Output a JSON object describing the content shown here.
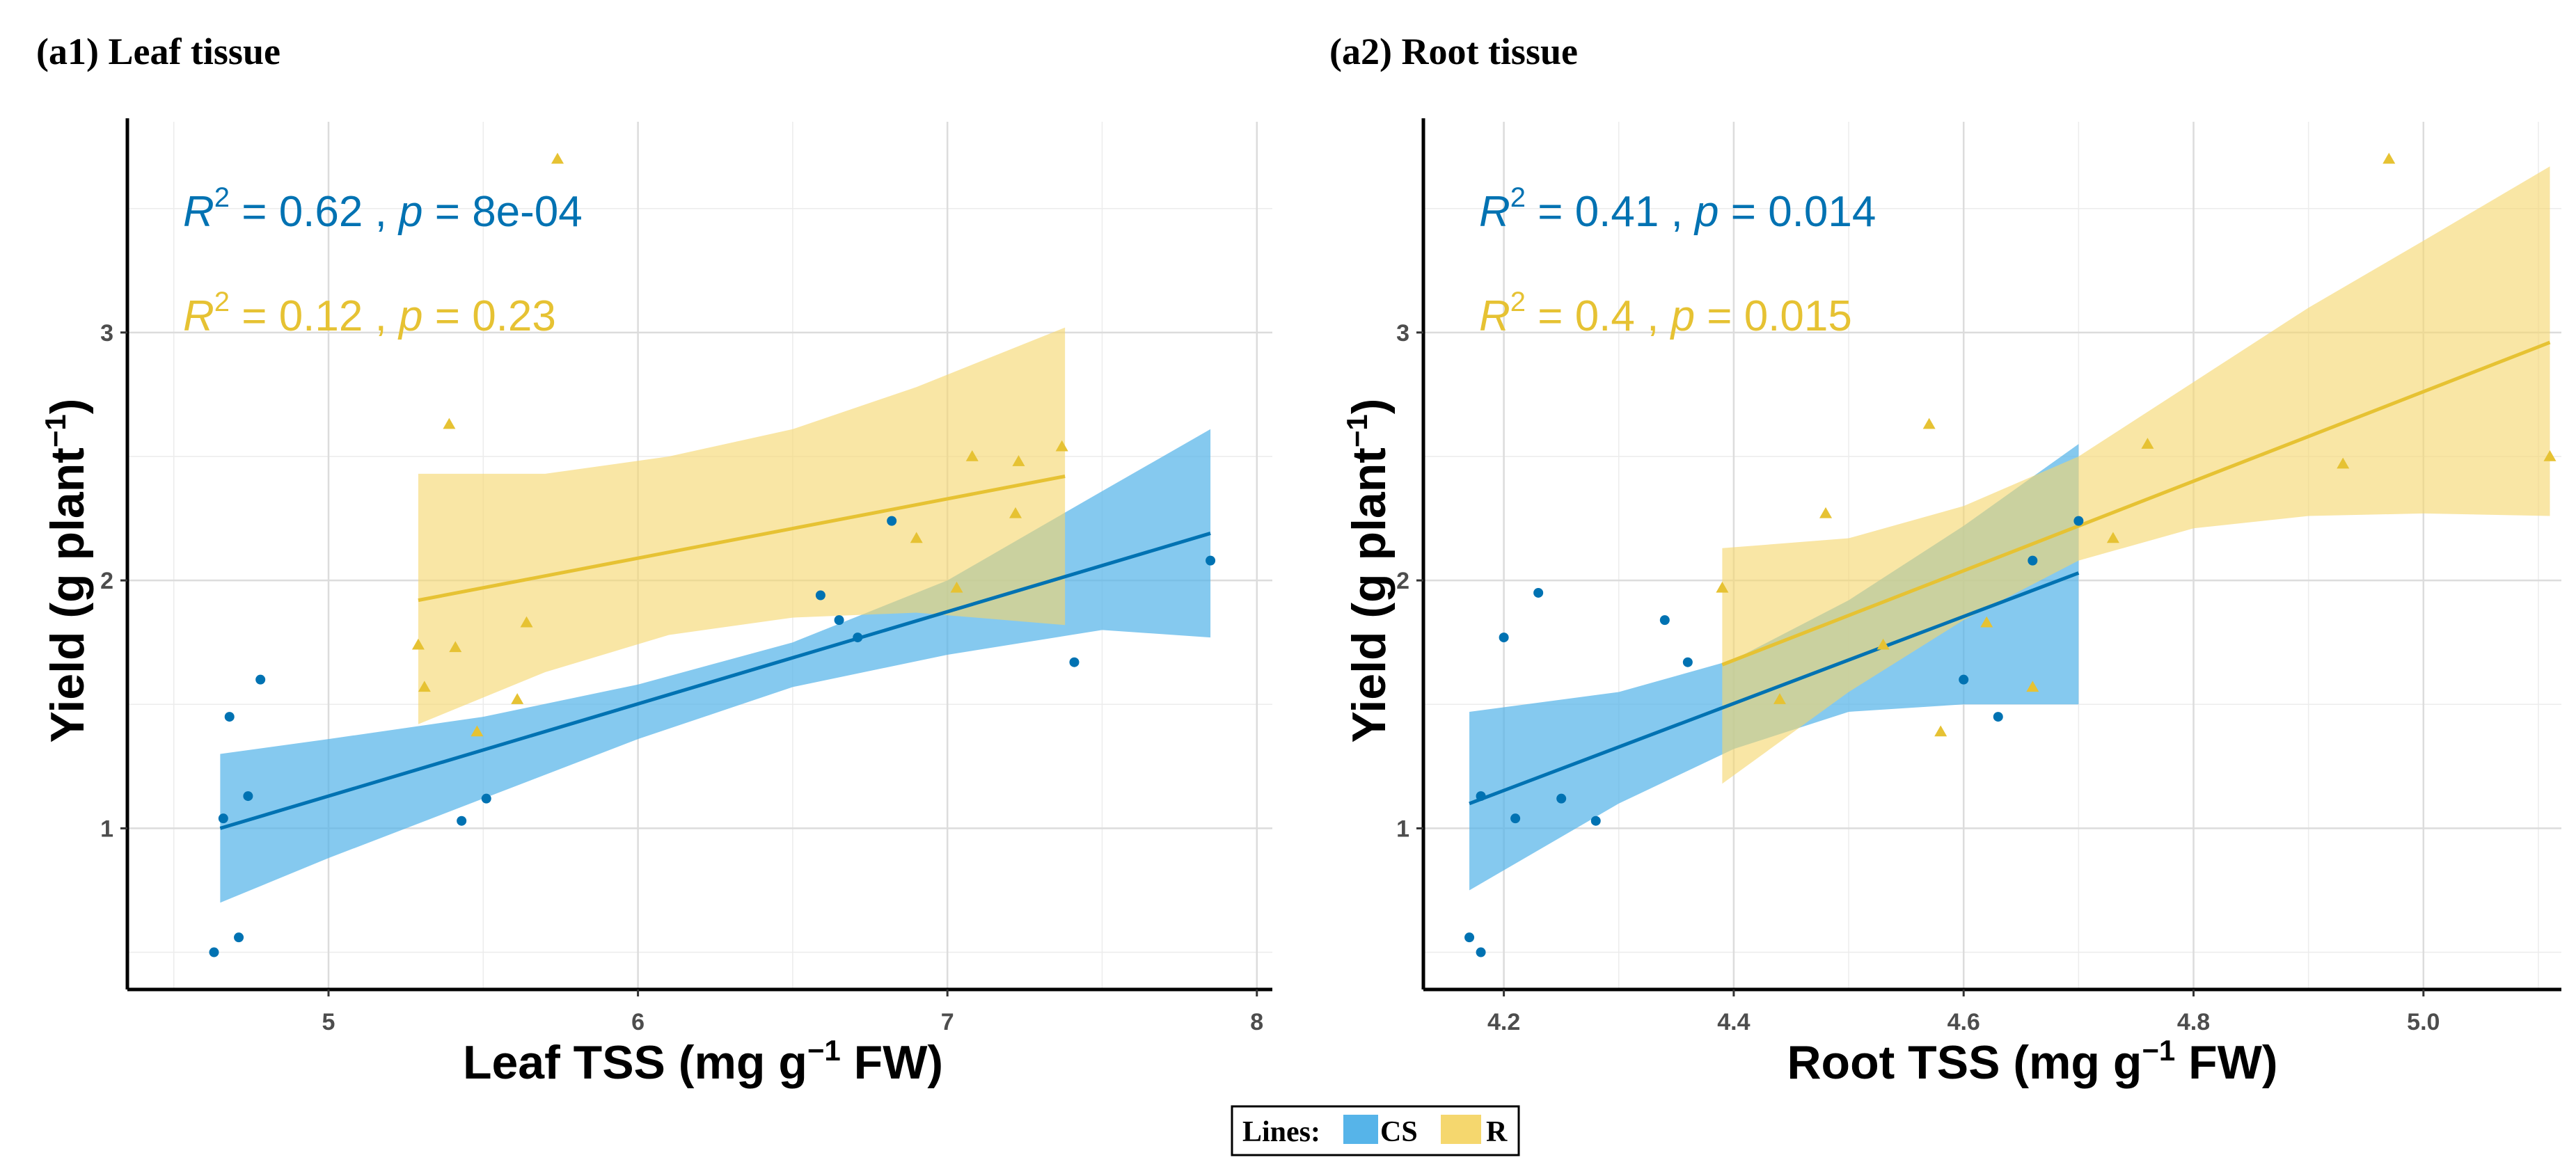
{
  "colors": {
    "cs_line": "#0072B2",
    "cs_band": "#56B4E9",
    "r_line": "#E6C233",
    "r_band": "#F5D76E"
  },
  "legend": {
    "label": "Lines:",
    "cs": "CS",
    "r": "R"
  },
  "chart_data": [
    {
      "type": "scatter",
      "panel": "(a1) Leaf tissue",
      "xlabel": "Leaf TSS (mg g",
      "xlabel_sup": "−1",
      "xlabel_tail": " FW)",
      "ylabel": "Yield (g plant",
      "ylabel_sup": "−1",
      "ylabel_tail": ")",
      "xlim": [
        4.35,
        8.05
      ],
      "ylim": [
        0.35,
        3.85
      ],
      "xticks": [
        5,
        6,
        7,
        8
      ],
      "yticks": [
        1,
        2,
        3
      ],
      "xminor": [
        4.5,
        5.5,
        6.5,
        7.5
      ],
      "yminor": [
        0.5,
        1.5,
        2.5,
        3.5
      ],
      "annotations": [
        {
          "series": "CS",
          "r2_label": "R",
          "r2_value": " = 0.62 , ",
          "p_label": "p",
          "p_value": " = 8e-04"
        },
        {
          "series": "R",
          "r2_label": "R",
          "r2_value": " = 0.12 , ",
          "p_label": "p",
          "p_value": " = 0.23"
        }
      ],
      "series": [
        {
          "name": "CS",
          "marker": "circle",
          "points": [
            [
              4.63,
              0.5
            ],
            [
              4.66,
              1.04
            ],
            [
              4.68,
              1.45
            ],
            [
              4.71,
              0.56
            ],
            [
              4.74,
              1.13
            ],
            [
              4.78,
              1.6
            ],
            [
              5.43,
              1.03
            ],
            [
              5.51,
              1.12
            ],
            [
              6.59,
              1.94
            ],
            [
              6.65,
              1.84
            ],
            [
              6.71,
              1.77
            ],
            [
              6.82,
              2.24
            ],
            [
              7.41,
              1.67
            ],
            [
              7.85,
              2.08
            ]
          ],
          "fit": {
            "x": [
              4.65,
              7.85
            ],
            "y": [
              1.0,
              2.19
            ]
          },
          "band": {
            "x": [
              4.65,
              5.0,
              5.5,
              6.0,
              6.5,
              7.0,
              7.5,
              7.85
            ],
            "lower": [
              0.7,
              0.88,
              1.12,
              1.36,
              1.57,
              1.7,
              1.8,
              1.77
            ],
            "upper": [
              1.3,
              1.36,
              1.45,
              1.58,
              1.75,
              2.0,
              2.36,
              2.61
            ]
          }
        },
        {
          "name": "R",
          "marker": "triangle",
          "points": [
            [
              5.29,
              1.74
            ],
            [
              5.31,
              1.57
            ],
            [
              5.39,
              2.63
            ],
            [
              5.41,
              1.73
            ],
            [
              5.48,
              1.39
            ],
            [
              5.61,
              1.52
            ],
            [
              5.64,
              1.83
            ],
            [
              5.74,
              3.7
            ],
            [
              6.9,
              2.17
            ],
            [
              7.03,
              1.97
            ],
            [
              7.08,
              2.5
            ],
            [
              7.22,
              2.27
            ],
            [
              7.23,
              2.48
            ],
            [
              7.37,
              2.54
            ]
          ],
          "fit": {
            "x": [
              5.29,
              7.38
            ],
            "y": [
              1.92,
              2.42
            ]
          },
          "band": {
            "x": [
              5.29,
              5.7,
              6.1,
              6.5,
              6.9,
              7.38
            ],
            "lower": [
              1.42,
              1.63,
              1.78,
              1.85,
              1.87,
              1.82
            ],
            "upper": [
              2.43,
              2.43,
              2.5,
              2.61,
              2.78,
              3.02
            ]
          }
        }
      ]
    },
    {
      "type": "scatter",
      "panel": "(a2) Root tissue",
      "xlabel": "Root TSS (mg g",
      "xlabel_sup": "−1",
      "xlabel_tail": " FW)",
      "ylabel": "Yield (g plant",
      "ylabel_sup": "−1",
      "ylabel_tail": ")",
      "xlim": [
        4.13,
        5.12
      ],
      "ylim": [
        0.35,
        3.85
      ],
      "xticks": [
        4.2,
        4.4,
        4.6,
        4.8,
        5.0
      ],
      "xtick_labels": [
        "4.2",
        "4.4",
        "4.6",
        "4.8",
        "5.0"
      ],
      "yticks": [
        1,
        2,
        3
      ],
      "xminor": [
        4.3,
        4.5,
        4.7,
        4.9,
        5.1
      ],
      "yminor": [
        0.5,
        1.5,
        2.5,
        3.5
      ],
      "annotations": [
        {
          "series": "CS",
          "r2_label": "R",
          "r2_value": " = 0.41 , ",
          "p_label": "p",
          "p_value": " = 0.014"
        },
        {
          "series": "R",
          "r2_label": "R",
          "r2_value": " = 0.4 , ",
          "p_label": "p",
          "p_value": " = 0.015"
        }
      ],
      "series": [
        {
          "name": "CS",
          "marker": "circle",
          "points": [
            [
              4.17,
              0.56
            ],
            [
              4.18,
              0.5
            ],
            [
              4.18,
              1.13
            ],
            [
              4.2,
              1.77
            ],
            [
              4.21,
              1.04
            ],
            [
              4.23,
              1.95
            ],
            [
              4.25,
              1.12
            ],
            [
              4.28,
              1.03
            ],
            [
              4.34,
              1.84
            ],
            [
              4.36,
              1.67
            ],
            [
              4.6,
              1.6
            ],
            [
              4.63,
              1.45
            ],
            [
              4.66,
              2.08
            ],
            [
              4.7,
              2.24
            ]
          ],
          "fit": {
            "x": [
              4.17,
              4.7
            ],
            "y": [
              1.1,
              2.03
            ]
          },
          "band": {
            "x": [
              4.17,
              4.3,
              4.4,
              4.5,
              4.6,
              4.7
            ],
            "lower": [
              0.75,
              1.1,
              1.32,
              1.47,
              1.5,
              1.5
            ],
            "upper": [
              1.47,
              1.55,
              1.68,
              1.92,
              2.22,
              2.55
            ]
          }
        },
        {
          "name": "R",
          "marker": "triangle",
          "points": [
            [
              4.39,
              1.97
            ],
            [
              4.44,
              1.52
            ],
            [
              4.48,
              2.27
            ],
            [
              4.53,
              1.74
            ],
            [
              4.57,
              2.63
            ],
            [
              4.58,
              1.39
            ],
            [
              4.62,
              1.83
            ],
            [
              4.66,
              1.57
            ],
            [
              4.73,
              2.17
            ],
            [
              4.76,
              2.55
            ],
            [
              4.93,
              2.47
            ],
            [
              4.97,
              3.7
            ],
            [
              5.11,
              2.5
            ]
          ],
          "fit": {
            "x": [
              4.39,
              5.11
            ],
            "y": [
              1.66,
              2.96
            ]
          },
          "band": {
            "x": [
              4.39,
              4.5,
              4.6,
              4.7,
              4.8,
              4.9,
              5.0,
              5.11
            ],
            "lower": [
              1.18,
              1.55,
              1.84,
              2.08,
              2.21,
              2.26,
              2.27,
              2.26
            ],
            "upper": [
              2.13,
              2.17,
              2.3,
              2.5,
              2.8,
              3.1,
              3.37,
              3.67
            ]
          }
        }
      ]
    }
  ]
}
